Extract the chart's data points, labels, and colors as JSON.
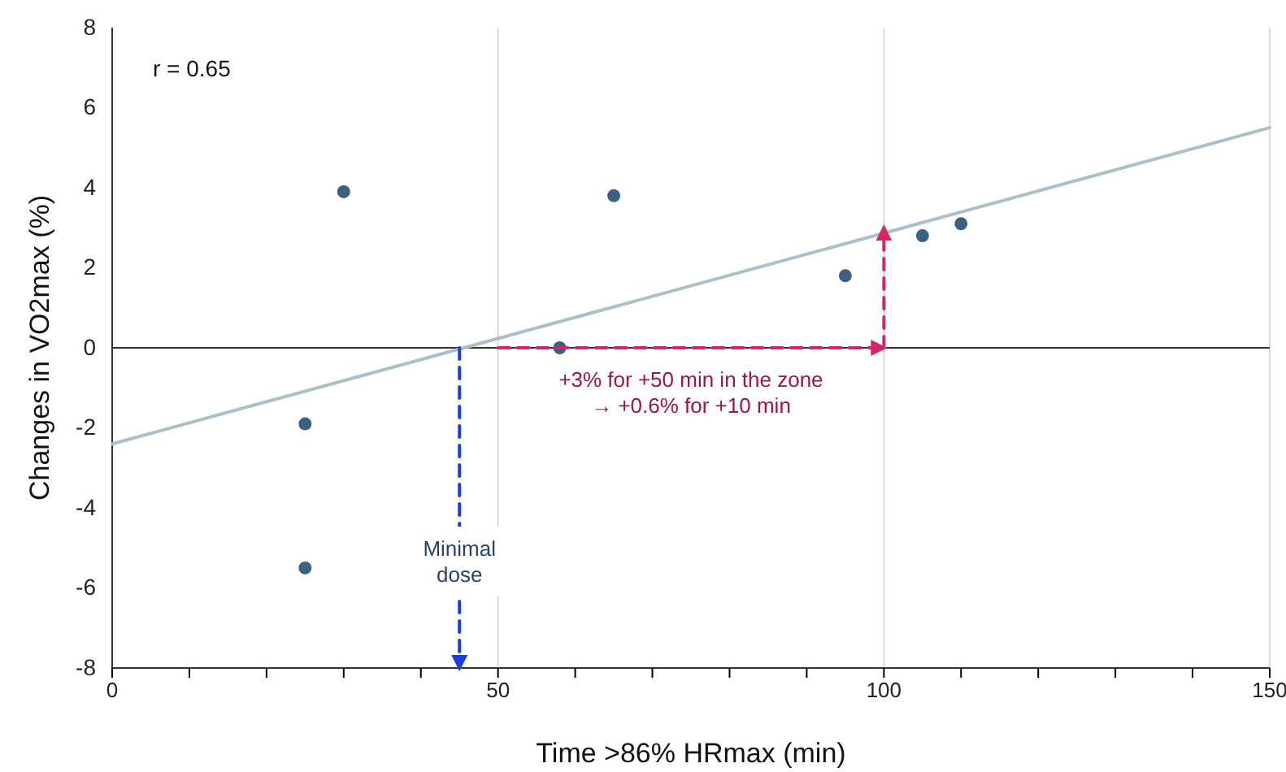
{
  "chart_data": {
    "type": "scatter",
    "xlabel": "Time >86% HRmax (min)",
    "ylabel": "Changes in VO2max (%)",
    "xlim": [
      0,
      150
    ],
    "ylim": [
      -8,
      8
    ],
    "xticks": [
      0,
      {
        "value": 10,
        "label": null
      },
      {
        "value": 20,
        "label": null
      },
      {
        "value": 30,
        "label": null
      },
      {
        "value": 40,
        "label": null
      },
      50,
      {
        "value": 60,
        "label": null
      },
      {
        "value": 70,
        "label": null
      },
      {
        "value": 80,
        "label": null
      },
      {
        "value": 90,
        "label": null
      },
      100,
      {
        "value": 110,
        "label": null
      },
      {
        "value": 120,
        "label": null
      },
      {
        "value": 130,
        "label": null
      },
      {
        "value": 140,
        "label": null
      },
      150
    ],
    "yticks": [
      -8,
      -6,
      -4,
      -2,
      0,
      2,
      4,
      6,
      8
    ],
    "grid": "x",
    "series": [
      {
        "type": "line",
        "color": "#a9c0cc",
        "x": [
          0,
          150
        ],
        "values": [
          -2.4,
          5.5
        ]
      },
      {
        "marker": "circle",
        "color": "#3d6080",
        "x": [
          25,
          25,
          30,
          58,
          65,
          95,
          105,
          110
        ],
        "values": [
          -1.9,
          -5.5,
          3.9,
          0,
          3.8,
          1.8,
          2.8,
          3.1
        ]
      },
      {
        "type": "line",
        "color": "#1a3fe0",
        "line_style": "dashed",
        "x": [
          45,
          45
        ],
        "values": [
          0,
          -8
        ]
      },
      {
        "type": "line",
        "color": "#d6246e",
        "line_style": "dashed",
        "x": [
          50,
          100
        ],
        "values": [
          0,
          0
        ]
      },
      {
        "type": "line",
        "color": "#d6246e",
        "line_style": "dashed",
        "x": [
          100,
          100
        ],
        "values": [
          0,
          3
        ]
      }
    ],
    "ref_lines": [
      {
        "axis": "y",
        "value": 0,
        "color": "#333333"
      }
    ],
    "annotations": [
      "r = 0.65",
      "+3% for +50 min in the zone\n→ +0.6% for +10 min",
      {
        "text": "Minimal\ndose",
        "x": 45,
        "y": -5.2
      }
    ]
  }
}
